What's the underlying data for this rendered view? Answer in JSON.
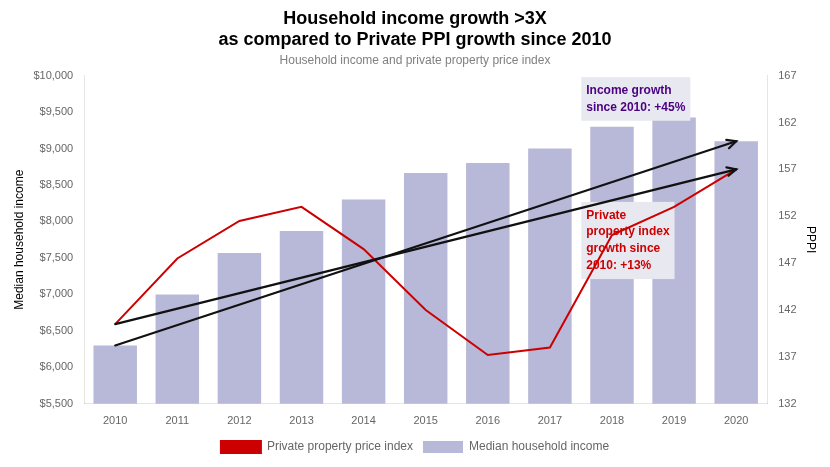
{
  "chart_data": {
    "type": "bar",
    "title": [
      "Household income growth >3X",
      "as compared to Private PPI growth since 2010"
    ],
    "subtitle": "Household income and private property price index",
    "categories": [
      "2010",
      "2011",
      "2012",
      "2013",
      "2014",
      "2015",
      "2016",
      "2017",
      "2018",
      "2019",
      "2020"
    ],
    "series": [
      {
        "name": "Median household income",
        "type": "bar",
        "color": "#b8b8d8",
        "axis": "y",
        "values": [
          6300,
          7000,
          7566,
          7870,
          8300,
          8666,
          8800,
          9000,
          9300,
          9425,
          9100
        ]
      },
      {
        "name": "Private property price index",
        "type": "line",
        "color": "#cc0000",
        "axis": "y2",
        "values": [
          140.5,
          147.5,
          151.5,
          153.0,
          148.5,
          142.0,
          137.2,
          138.0,
          150.0,
          153.0,
          157.0
        ]
      }
    ],
    "ylabel": "Median household income",
    "y2label": "PPPI",
    "ylim": [
      5500,
      10000
    ],
    "yticks": [
      {
        "value": 5500,
        "label": "$5,500"
      },
      {
        "value": 6000,
        "label": "$6,000"
      },
      {
        "value": 6500,
        "label": "$6,500"
      },
      {
        "value": 7000,
        "label": "$7,000"
      },
      {
        "value": 7500,
        "label": "$7,500"
      },
      {
        "value": 8000,
        "label": "$8,000"
      },
      {
        "value": 8500,
        "label": "$8,500"
      },
      {
        "value": 9000,
        "label": "$9,000"
      },
      {
        "value": 9500,
        "label": "$9,500"
      },
      {
        "value": 10000,
        "label": "$10,000"
      }
    ],
    "y2lim": [
      132,
      167
    ],
    "y2ticks": [
      132,
      137,
      142,
      147,
      152,
      157,
      162,
      167
    ],
    "trend_lines": [
      {
        "axis": "y",
        "x": [
          "2010",
          "2020"
        ],
        "y": [
          6300,
          9100
        ],
        "color": "#111111"
      },
      {
        "axis": "y2",
        "x": [
          "2010",
          "2020"
        ],
        "y": [
          140.5,
          157.0
        ],
        "color": "#111111"
      }
    ],
    "annotations": [
      {
        "text": "Income growth\nsince 2010: +45%",
        "color": "#4b0082",
        "box_color": "#e8e8f0"
      },
      {
        "text": "Private\nproperty index\ngrowth since\n2010: +13%",
        "color": "#cc0000",
        "box_color": "#e8e8f0"
      }
    ],
    "legend": "bottom",
    "grid": false
  }
}
